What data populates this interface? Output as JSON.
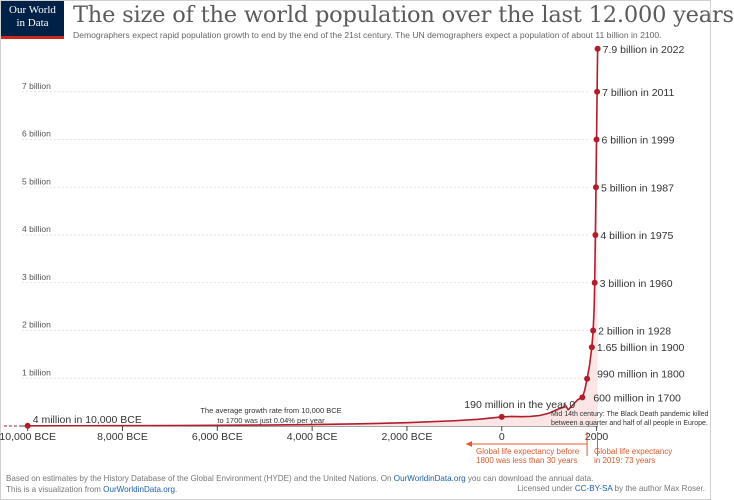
{
  "logo": {
    "line1": "Our World",
    "line2": "in Data"
  },
  "header": {
    "title": "The size of the world population over the last 12.000 years",
    "subtitle": "Demographers expect rapid population growth to end by the end of the 21st century. The UN demographers expect a population of about 11 billion in 2100."
  },
  "chart_data": {
    "type": "line",
    "x_axis": {
      "range": [
        -10500,
        2030
      ],
      "ticks": [
        {
          "value": -10000,
          "label": "10,000 BCE"
        },
        {
          "value": -8000,
          "label": "8,000 BCE"
        },
        {
          "value": -6000,
          "label": "6,000 BCE"
        },
        {
          "value": -4000,
          "label": "4,000 BCE"
        },
        {
          "value": -2000,
          "label": "2,000 BCE"
        },
        {
          "value": 0,
          "label": "0"
        },
        {
          "value": 2000,
          "label": "2000"
        }
      ]
    },
    "y_axis": {
      "range": [
        0,
        8
      ],
      "ticks": [
        {
          "value": 1,
          "label": "1 billion"
        },
        {
          "value": 2,
          "label": "2 billion"
        },
        {
          "value": 3,
          "label": "3 billion"
        },
        {
          "value": 4,
          "label": "4 billion"
        },
        {
          "value": 5,
          "label": "5 billion"
        },
        {
          "value": 6,
          "label": "6 billion"
        },
        {
          "value": 7,
          "label": "7 billion"
        }
      ]
    },
    "grid": "horizontal dotted",
    "series": [
      {
        "color": "#b11d2b",
        "points": [
          {
            "x": -10000,
            "y": 0.004
          },
          {
            "x": -9000,
            "y": 0.005
          },
          {
            "x": -8000,
            "y": 0.007
          },
          {
            "x": -7000,
            "y": 0.01
          },
          {
            "x": -6000,
            "y": 0.015
          },
          {
            "x": -5000,
            "y": 0.02
          },
          {
            "x": -4000,
            "y": 0.03
          },
          {
            "x": -3000,
            "y": 0.045
          },
          {
            "x": -2000,
            "y": 0.07
          },
          {
            "x": -1000,
            "y": 0.11
          },
          {
            "x": -500,
            "y": 0.14
          },
          {
            "x": 0,
            "y": 0.19
          },
          {
            "x": 200,
            "y": 0.2
          },
          {
            "x": 400,
            "y": 0.195
          },
          {
            "x": 600,
            "y": 0.2
          },
          {
            "x": 800,
            "y": 0.22
          },
          {
            "x": 1000,
            "y": 0.27
          },
          {
            "x": 1200,
            "y": 0.36
          },
          {
            "x": 1300,
            "y": 0.39
          },
          {
            "x": 1340,
            "y": 0.44
          },
          {
            "x": 1400,
            "y": 0.34
          },
          {
            "x": 1500,
            "y": 0.44
          },
          {
            "x": 1600,
            "y": 0.55
          },
          {
            "x": 1700,
            "y": 0.6
          },
          {
            "x": 1750,
            "y": 0.75
          },
          {
            "x": 1800,
            "y": 0.99
          },
          {
            "x": 1850,
            "y": 1.26
          },
          {
            "x": 1900,
            "y": 1.65
          },
          {
            "x": 1928,
            "y": 2.0
          },
          {
            "x": 1950,
            "y": 2.5
          },
          {
            "x": 1960,
            "y": 3.0
          },
          {
            "x": 1975,
            "y": 4.0
          },
          {
            "x": 1987,
            "y": 5.0
          },
          {
            "x": 1999,
            "y": 6.0
          },
          {
            "x": 2011,
            "y": 7.0
          },
          {
            "x": 2022,
            "y": 7.9
          }
        ]
      }
    ],
    "markers": [
      {
        "x": -10000,
        "y": 0.004,
        "label": "4 million in 10,000 BCE"
      },
      {
        "x": 0,
        "y": 0.19,
        "label": "190 million in the year 0"
      },
      {
        "x": 1700,
        "y": 0.6,
        "label": "600 million in 1700"
      },
      {
        "x": 1800,
        "y": 0.99,
        "label": "990 million in 1800"
      },
      {
        "x": 1900,
        "y": 1.65,
        "label": "1.65 billion in 1900"
      },
      {
        "x": 1928,
        "y": 2.0,
        "label": "2 billion in 1928"
      },
      {
        "x": 1960,
        "y": 3.0,
        "label": "3 billion in 1960"
      },
      {
        "x": 1975,
        "y": 4.0,
        "label": "4 billion in 1975"
      },
      {
        "x": 1987,
        "y": 5.0,
        "label": "5 billion in 1987"
      },
      {
        "x": 1999,
        "y": 6.0,
        "label": "6 billion in 1999"
      },
      {
        "x": 2011,
        "y": 7.0,
        "label": "7 billion in 2011"
      },
      {
        "x": 2022,
        "y": 7.9,
        "label": "7.9 billion in 2022"
      }
    ],
    "annotations": {
      "growth_rate": [
        "The average growth rate from 10,000 BCE",
        "to 1700 was just  0.04% per year"
      ],
      "black_death": [
        "Mid 14th century: The Black Death pandemic killed",
        "between a quarter and half of all people in Europe."
      ],
      "life_exp_1800": [
        "Global life expectancy before",
        "1800 was less than 30 years"
      ],
      "life_exp_2019": [
        "Global life expectancy",
        "in 2019: 73 years"
      ]
    },
    "colors": {
      "line": "#b11d2b",
      "annotation": "#e0582b",
      "area": "#fbe5e5"
    }
  },
  "footer": {
    "line1_prefix": "Based on estimates by the History Database of the Global Environment (HYDE) and the United Nations. On ",
    "line1_link": "OurWorldinData.org",
    "line1_suffix": " you can download the annual data.",
    "line2_prefix": "This is a visualization from ",
    "line2_link": "OurWorldinData.org",
    "line2_suffix": ".",
    "license_prefix": "Licensed under ",
    "license_link": "CC-BY-SA",
    "license_suffix": " by the author Max Roser."
  }
}
